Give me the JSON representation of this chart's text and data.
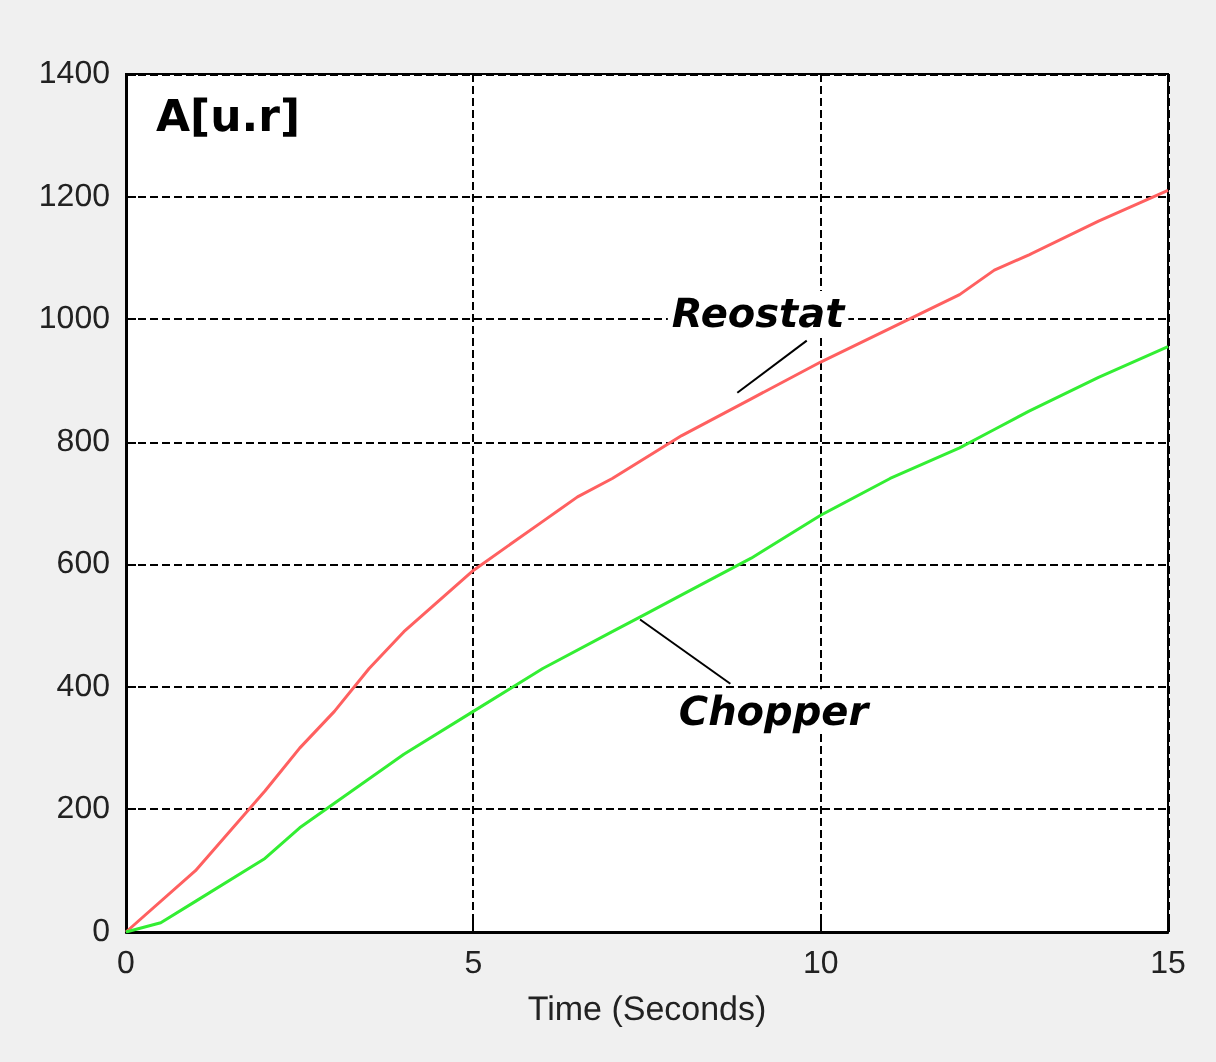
{
  "chart_data": {
    "type": "line",
    "xlabel": "Time (Seconds)",
    "ylabel": "A[u.r]",
    "xlim": [
      0,
      15
    ],
    "xticks": [
      0,
      5,
      10,
      15
    ],
    "ylim": [
      0,
      1400
    ],
    "yticks": [
      0,
      200,
      400,
      600,
      800,
      1000,
      1200,
      1400
    ],
    "grid": true,
    "legend": false,
    "marker": "none",
    "line_style": "solid",
    "series": [
      {
        "name": "Reostat",
        "color": "#ff6060",
        "x": [
          0,
          1,
          2,
          2.5,
          3,
          3.5,
          4,
          5,
          6,
          6.5,
          7,
          8,
          9,
          10,
          11,
          12,
          12.5,
          13,
          14,
          15
        ],
        "values": [
          0,
          100,
          230,
          300,
          360,
          430,
          490,
          590,
          670,
          710,
          740,
          810,
          870,
          930,
          985,
          1040,
          1080,
          1105,
          1160,
          1210
        ]
      },
      {
        "name": "Chopper",
        "color": "#33ee33",
        "x": [
          0,
          0.5,
          1,
          2,
          2.5,
          3,
          4,
          5,
          6,
          7,
          7.5,
          8,
          9,
          10,
          11,
          12,
          12.5,
          13,
          14,
          15
        ],
        "values": [
          0,
          15,
          50,
          120,
          170,
          210,
          290,
          360,
          430,
          490,
          520,
          550,
          610,
          680,
          740,
          790,
          820,
          850,
          905,
          955
        ]
      }
    ]
  }
}
